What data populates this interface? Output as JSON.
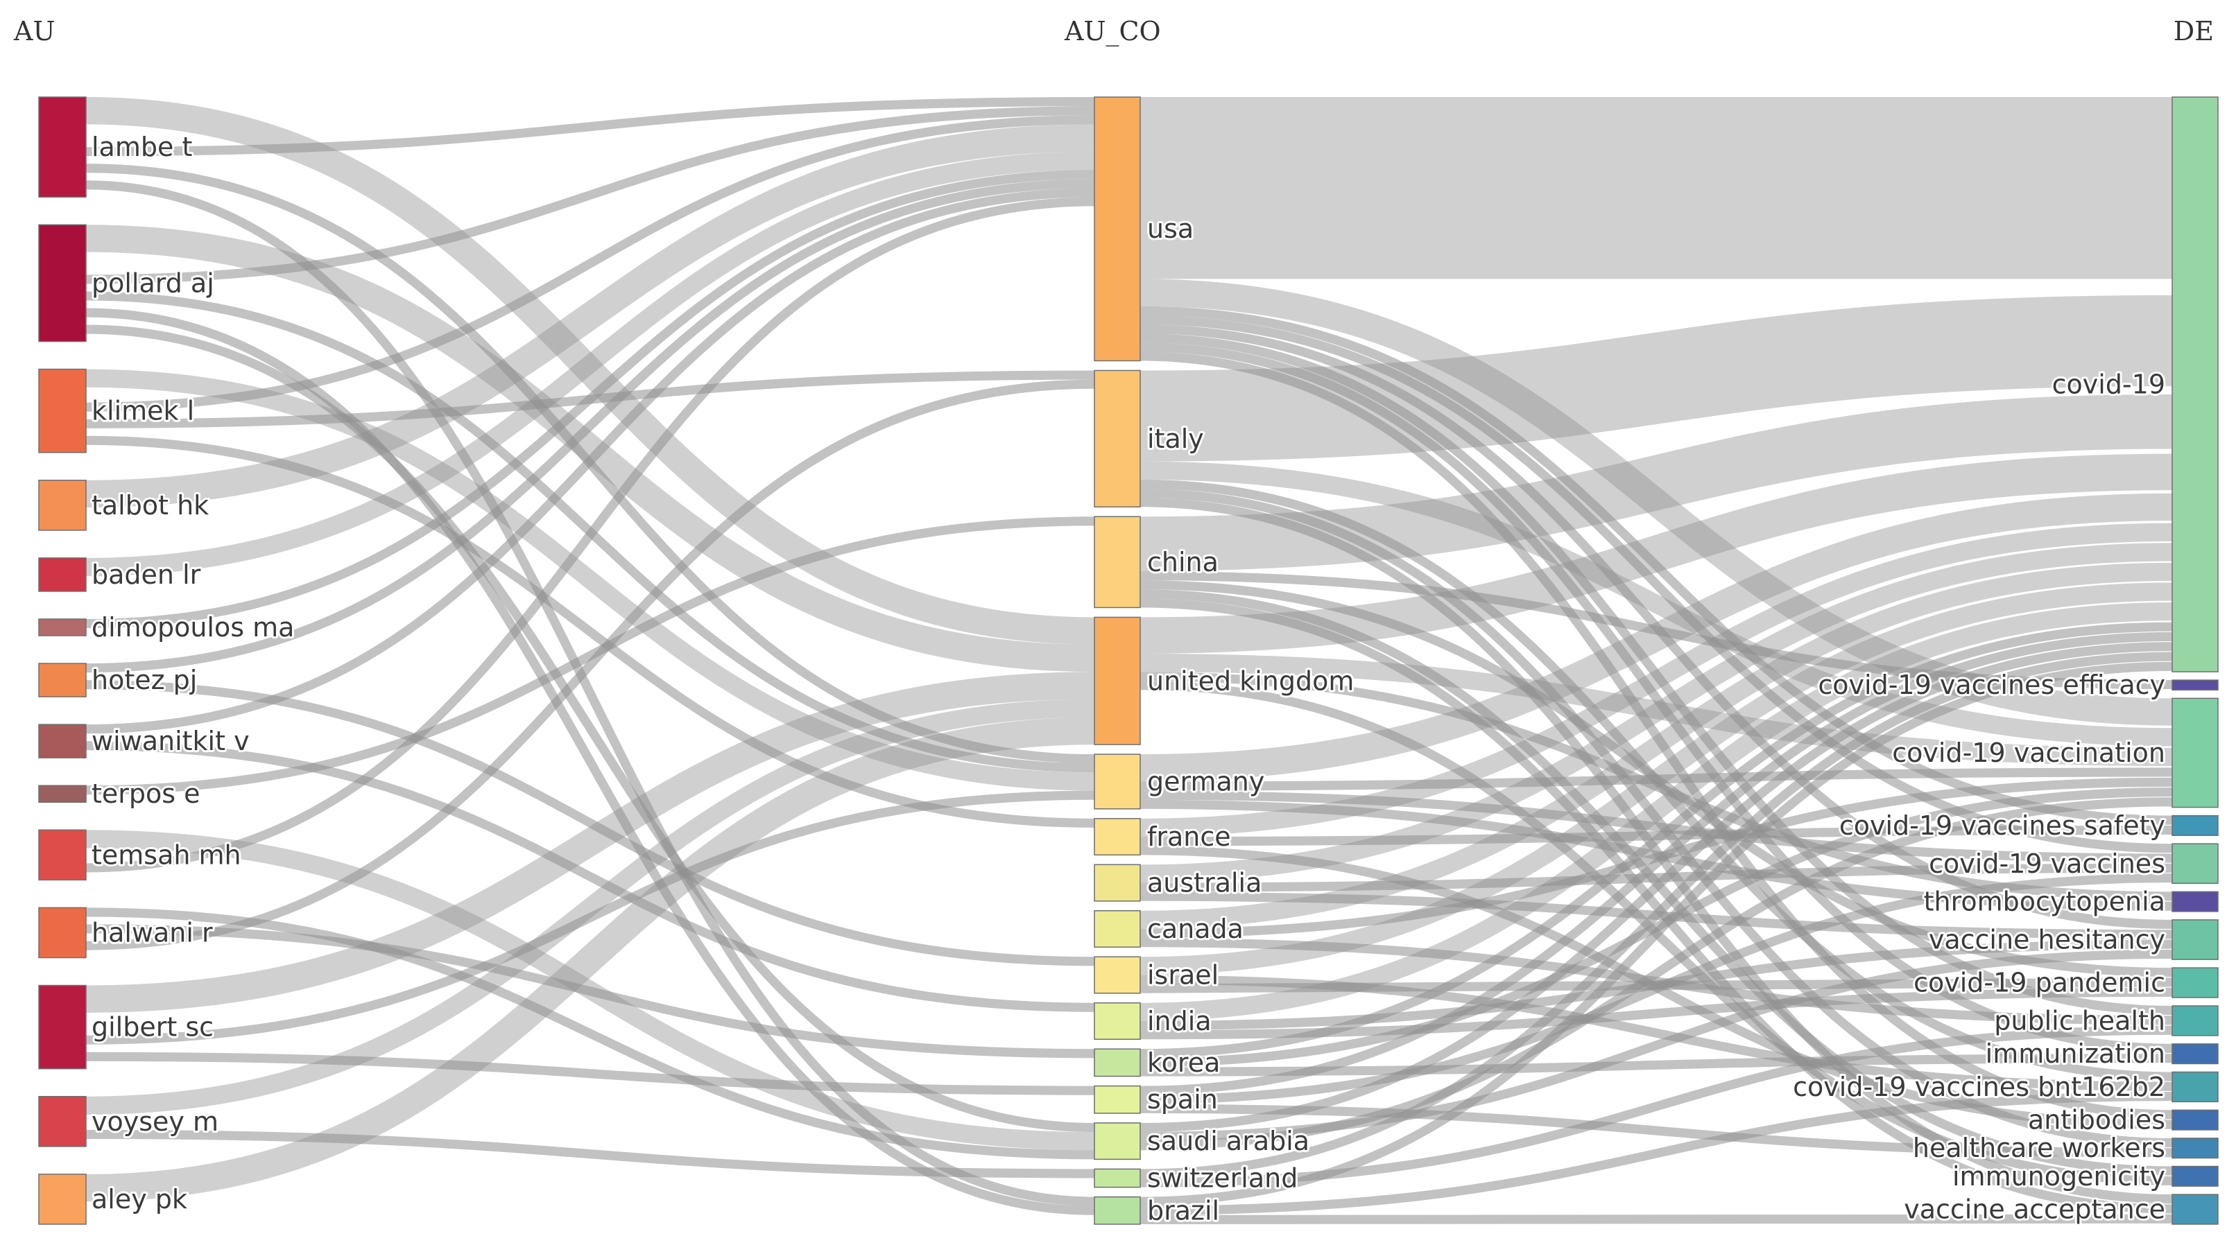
{
  "columns": [
    "AU",
    "AU_CO",
    "DE"
  ],
  "left_nodes": [
    {
      "id": "lambe t",
      "label": "lambe t",
      "color": "#b5173f"
    },
    {
      "id": "pollard aj",
      "label": "pollard aj",
      "color": "#a80f3a"
    },
    {
      "id": "klimek l",
      "label": "klimek l",
      "color": "#ee6a45"
    },
    {
      "id": "talbot hk",
      "label": "talbot hk",
      "color": "#f59055"
    },
    {
      "id": "baden lr",
      "label": "baden lr",
      "color": "#d03447"
    },
    {
      "id": "dimopoulos ma",
      "label": "dimopoulos ma",
      "color": "#b36a6a"
    },
    {
      "id": "hotez pj",
      "label": "hotez pj",
      "color": "#f0884d"
    },
    {
      "id": "wiwanitkit v",
      "label": "wiwanitkit v",
      "color": "#a85a5a"
    },
    {
      "id": "terpos e",
      "label": "terpos e",
      "color": "#9a6060"
    },
    {
      "id": "temsah mh",
      "label": "temsah mh",
      "color": "#df4d4a"
    },
    {
      "id": "halwani r",
      "label": "halwani r",
      "color": "#ec6b47"
    },
    {
      "id": "gilbert sc",
      "label": "gilbert sc",
      "color": "#b81b40"
    },
    {
      "id": "voysey m",
      "label": "voysey m",
      "color": "#d9434b"
    },
    {
      "id": "aley pk",
      "label": "aley pk",
      "color": "#f8a25e"
    }
  ],
  "middle_nodes": [
    {
      "id": "usa",
      "label": "usa",
      "color": "#f9ac5c"
    },
    {
      "id": "italy",
      "label": "italy",
      "color": "#fbc470"
    },
    {
      "id": "china",
      "label": "china",
      "color": "#fcd07c"
    },
    {
      "id": "united kingdom",
      "label": "united kingdom",
      "color": "#f9ab5b"
    },
    {
      "id": "germany",
      "label": "germany",
      "color": "#fddb84"
    },
    {
      "id": "france",
      "label": "france",
      "color": "#fde08a"
    },
    {
      "id": "australia",
      "label": "australia",
      "color": "#f1e68d"
    },
    {
      "id": "canada",
      "label": "canada",
      "color": "#eeec93"
    },
    {
      "id": "israel",
      "label": "israel",
      "color": "#fbe58e"
    },
    {
      "id": "india",
      "label": "india",
      "color": "#e5f19a"
    },
    {
      "id": "korea",
      "label": "korea",
      "color": "#c7e79e"
    },
    {
      "id": "spain",
      "label": "spain",
      "color": "#e4f29c"
    },
    {
      "id": "saudi arabia",
      "label": "saudi arabia",
      "color": "#dbef9d"
    },
    {
      "id": "switzerland",
      "label": "switzerland",
      "color": "#c5e89f"
    },
    {
      "id": "brazil",
      "label": "brazil",
      "color": "#b6e2a1"
    }
  ],
  "right_nodes": [
    {
      "id": "covid-19",
      "label": "covid-19",
      "color": "#97d6a4"
    },
    {
      "id": "covid-19 vaccines efficacy",
      "label": "covid-19 vaccines efficacy",
      "color": "#5a4ea1"
    },
    {
      "id": "covid-19 vaccination",
      "label": "covid-19 vaccination",
      "color": "#7fcfa4"
    },
    {
      "id": "covid-19 vaccines safety",
      "label": "covid-19 vaccines safety",
      "color": "#3f96b6"
    },
    {
      "id": "covid-19 vaccines",
      "label": "covid-19 vaccines",
      "color": "#7cc9a3"
    },
    {
      "id": "thrombocytopenia",
      "label": "thrombocytopenia",
      "color": "#5a4ea1"
    },
    {
      "id": "vaccine hesitancy",
      "label": "vaccine hesitancy",
      "color": "#6cc4a4"
    },
    {
      "id": "covid-19 pandemic",
      "label": "covid-19 pandemic",
      "color": "#5bbda5"
    },
    {
      "id": "public health",
      "label": "public health",
      "color": "#4eb0aa"
    },
    {
      "id": "immunization",
      "label": "immunization",
      "color": "#3f6fb0"
    },
    {
      "id": "covid-19 vaccines bnt162b2",
      "label": "covid-19 vaccines bnt162b2",
      "color": "#48a3ad"
    },
    {
      "id": "antibodies",
      "label": "antibodies",
      "color": "#3f6fb0"
    },
    {
      "id": "healthcare workers",
      "label": "healthcare workers",
      "color": "#3f86b4"
    },
    {
      "id": "immunogenicity",
      "label": "immunogenicity",
      "color": "#3f72b1"
    },
    {
      "id": "vaccine acceptance",
      "label": "vaccine acceptance",
      "color": "#4596b6"
    }
  ],
  "links_au_co": [
    [
      "lambe t",
      "united kingdom",
      3
    ],
    [
      "lambe t",
      "usa",
      1
    ],
    [
      "lambe t",
      "germany",
      1
    ],
    [
      "lambe t",
      "brazil",
      1
    ],
    [
      "pollard aj",
      "united kingdom",
      3
    ],
    [
      "pollard aj",
      "usa",
      1
    ],
    [
      "pollard aj",
      "germany",
      1
    ],
    [
      "pollard aj",
      "brazil",
      1
    ],
    [
      "pollard aj",
      "saudi arabia",
      1
    ],
    [
      "klimek l",
      "germany",
      2
    ],
    [
      "klimek l",
      "usa",
      1
    ],
    [
      "klimek l",
      "italy",
      1
    ],
    [
      "klimek l",
      "france",
      1
    ],
    [
      "talbot hk",
      "usa",
      3
    ],
    [
      "baden lr",
      "usa",
      2
    ],
    [
      "dimopoulos ma",
      "usa",
      1
    ],
    [
      "hotez pj",
      "usa",
      1
    ],
    [
      "hotez pj",
      "israel",
      1
    ],
    [
      "wiwanitkit v",
      "usa",
      1
    ],
    [
      "wiwanitkit v",
      "india",
      1
    ],
    [
      "terpos e",
      "china",
      1
    ],
    [
      "temsah mh",
      "saudi arabia",
      2
    ],
    [
      "temsah mh",
      "usa",
      1
    ],
    [
      "halwani r",
      "saudi arabia",
      1
    ],
    [
      "halwani r",
      "korea",
      1
    ],
    [
      "halwani r",
      "italy",
      1
    ],
    [
      "gilbert sc",
      "united kingdom",
      3
    ],
    [
      "gilbert sc",
      "germany",
      1
    ],
    [
      "gilbert sc",
      "spain",
      1
    ],
    [
      "voysey m",
      "united kingdom",
      2
    ],
    [
      "voysey m",
      "switzerland",
      1
    ],
    [
      "aley pk",
      "united kingdom",
      3
    ]
  ],
  "links_co_de": [
    [
      "usa",
      "covid-19",
      20
    ],
    [
      "usa",
      "covid-19 vaccination",
      3
    ],
    [
      "usa",
      "covid-19 vaccines safety",
      1
    ],
    [
      "usa",
      "covid-19 vaccines",
      1
    ],
    [
      "usa",
      "vaccine hesitancy",
      1
    ],
    [
      "usa",
      "public health",
      1
    ],
    [
      "usa",
      "immunization",
      1
    ],
    [
      "usa",
      "antibodies",
      1
    ],
    [
      "italy",
      "covid-19",
      10
    ],
    [
      "italy",
      "covid-19 vaccination",
      2
    ],
    [
      "italy",
      "covid-19 vaccines bnt162b2",
      1
    ],
    [
      "italy",
      "healthcare workers",
      1
    ],
    [
      "italy",
      "vaccine acceptance",
      1
    ],
    [
      "china",
      "covid-19",
      6
    ],
    [
      "china",
      "covid-19 vaccines efficacy",
      1
    ],
    [
      "china",
      "covid-19 pandemic",
      1
    ],
    [
      "china",
      "immunogenicity",
      1
    ],
    [
      "china",
      "vaccine acceptance",
      1
    ],
    [
      "united kingdom",
      "covid-19",
      4
    ],
    [
      "united kingdom",
      "covid-19 vaccination",
      2
    ],
    [
      "united kingdom",
      "thrombocytopenia",
      1
    ],
    [
      "united kingdom",
      "immunogenicity",
      1
    ],
    [
      "germany",
      "covid-19",
      3
    ],
    [
      "germany",
      "covid-19 vaccination",
      1
    ],
    [
      "germany",
      "covid-19 vaccines",
      1
    ],
    [
      "germany",
      "thrombocytopenia",
      1
    ],
    [
      "france",
      "covid-19",
      2
    ],
    [
      "france",
      "covid-19 vaccines safety",
      1
    ],
    [
      "france",
      "antibodies",
      1
    ],
    [
      "australia",
      "covid-19",
      2
    ],
    [
      "australia",
      "covid-19 vaccines",
      1
    ],
    [
      "australia",
      "vaccine hesitancy",
      1
    ],
    [
      "canada",
      "covid-19",
      2
    ],
    [
      "canada",
      "covid-19 vaccination",
      1
    ],
    [
      "canada",
      "public health",
      1
    ],
    [
      "israel",
      "covid-19",
      2
    ],
    [
      "israel",
      "covid-19 vaccines bnt162b2",
      1
    ],
    [
      "israel",
      "covid-19 pandemic",
      1
    ],
    [
      "india",
      "covid-19",
      2
    ],
    [
      "india",
      "vaccine hesitancy",
      1
    ],
    [
      "india",
      "covid-19 pandemic",
      1
    ],
    [
      "korea",
      "covid-19",
      1
    ],
    [
      "korea",
      "covid-19 vaccination",
      1
    ],
    [
      "korea",
      "immunization",
      1
    ],
    [
      "spain",
      "covid-19",
      1
    ],
    [
      "spain",
      "covid-19 vaccines",
      1
    ],
    [
      "spain",
      "healthcare workers",
      1
    ],
    [
      "saudi arabia",
      "covid-19",
      1
    ],
    [
      "saudi arabia",
      "vaccine hesitancy",
      1
    ],
    [
      "saudi arabia",
      "covid-19 vaccination",
      1
    ],
    [
      "switzerland",
      "covid-19",
      1
    ],
    [
      "switzerland",
      "public health",
      1
    ],
    [
      "brazil",
      "covid-19",
      1
    ],
    [
      "brazil",
      "covid-19 vaccines bnt162b2",
      1
    ],
    [
      "brazil",
      "vaccine acceptance",
      1
    ]
  ],
  "link_color": "#8f8f8f"
}
